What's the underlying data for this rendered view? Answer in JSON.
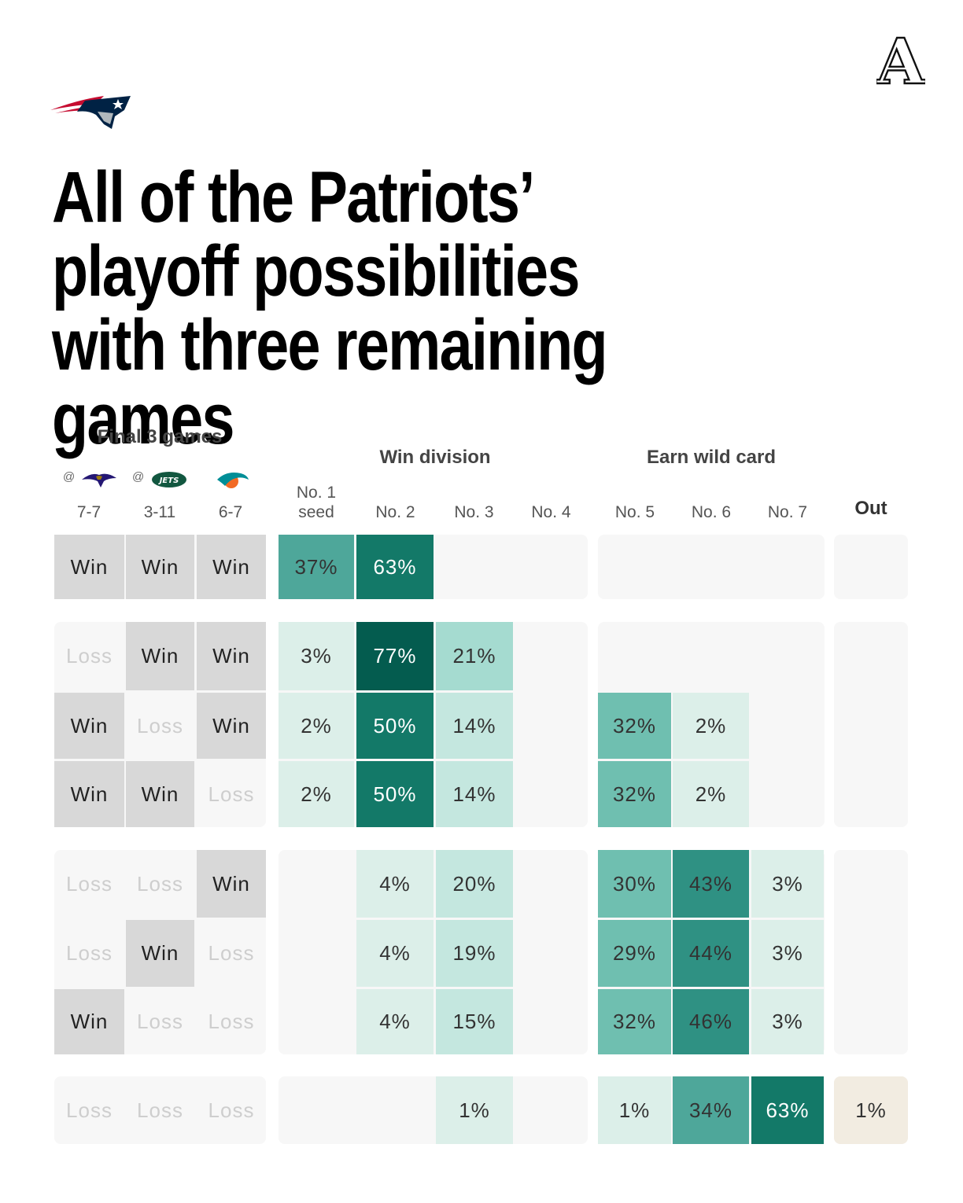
{
  "headline": "All of the Patriots’ playoff possibilities with three remaining games",
  "brand": {
    "logo_icon": "the-athletic-a-logo-icon",
    "logo_text": "A"
  },
  "team": {
    "logo_icon": "patriots-logo-icon"
  },
  "table": {
    "final_games_label": "Final 3 games",
    "win_division_label": "Win division",
    "wild_card_label": "Earn wild card",
    "opponents": [
      {
        "prefix": "@",
        "icon": "ravens-logo-icon",
        "record": "7-7"
      },
      {
        "prefix": "@",
        "icon": "jets-logo-icon",
        "jets_text": "JETS",
        "record": "3-11"
      },
      {
        "prefix": "",
        "icon": "dolphins-logo-icon",
        "record": "6-7"
      }
    ],
    "seed_columns": [
      {
        "label1": "No. 1",
        "label2": "seed"
      },
      {
        "label1": "",
        "label2": "No. 2"
      },
      {
        "label1": "",
        "label2": "No. 3"
      },
      {
        "label1": "",
        "label2": "No. 4"
      },
      {
        "label1": "",
        "label2": "No. 5"
      },
      {
        "label1": "",
        "label2": "No. 6"
      },
      {
        "label1": "",
        "label2": "No. 7"
      },
      {
        "label1": "",
        "label2": "Out"
      }
    ]
  },
  "colors": {
    "scale": [
      "#dcefe9",
      "#c4e7df",
      "#a5dbd0",
      "#6fbfb0",
      "#4ea79a",
      "#2f9183",
      "#137968",
      "#045c4f"
    ],
    "out": "#f2ece1",
    "win_bg": "#d8d8d8",
    "loss_text": "#cecece",
    "group_bg": "#f7f7f7"
  },
  "chart_data": {
    "type": "table",
    "title": "All of the Patriots’ playoff possibilities with three remaining games",
    "games": [
      "@ Ravens 7-7",
      "@ Jets 3-11",
      "Dolphins 6-7"
    ],
    "columns": [
      "No. 1 seed",
      "No. 2",
      "No. 3",
      "No. 4",
      "No. 5",
      "No. 6",
      "No. 7",
      "Out"
    ],
    "column_groups": [
      {
        "name": "Win division",
        "columns": [
          "No. 2",
          "No. 3",
          "No. 4"
        ]
      },
      {
        "name": "Earn wild card",
        "columns": [
          "No. 5",
          "No. 6",
          "No. 7"
        ]
      }
    ],
    "rows": [
      {
        "results": [
          "Win",
          "Win",
          "Win"
        ],
        "values": [
          37,
          63,
          null,
          null,
          null,
          null,
          null,
          null
        ]
      },
      {
        "results": [
          "Loss",
          "Win",
          "Win"
        ],
        "values": [
          3,
          77,
          21,
          null,
          null,
          null,
          null,
          null
        ]
      },
      {
        "results": [
          "Win",
          "Loss",
          "Win"
        ],
        "values": [
          2,
          50,
          14,
          null,
          32,
          2,
          null,
          null
        ]
      },
      {
        "results": [
          "Win",
          "Win",
          "Loss"
        ],
        "values": [
          2,
          50,
          14,
          null,
          32,
          2,
          null,
          null
        ]
      },
      {
        "results": [
          "Loss",
          "Loss",
          "Win"
        ],
        "values": [
          null,
          4,
          20,
          null,
          30,
          43,
          3,
          null
        ]
      },
      {
        "results": [
          "Loss",
          "Win",
          "Loss"
        ],
        "values": [
          null,
          4,
          19,
          null,
          29,
          44,
          3,
          null
        ]
      },
      {
        "results": [
          "Win",
          "Loss",
          "Loss"
        ],
        "values": [
          null,
          4,
          15,
          null,
          32,
          46,
          3,
          null
        ]
      },
      {
        "results": [
          "Loss",
          "Loss",
          "Loss"
        ],
        "values": [
          null,
          null,
          1,
          null,
          1,
          34,
          63,
          1
        ]
      }
    ],
    "units": "%"
  }
}
